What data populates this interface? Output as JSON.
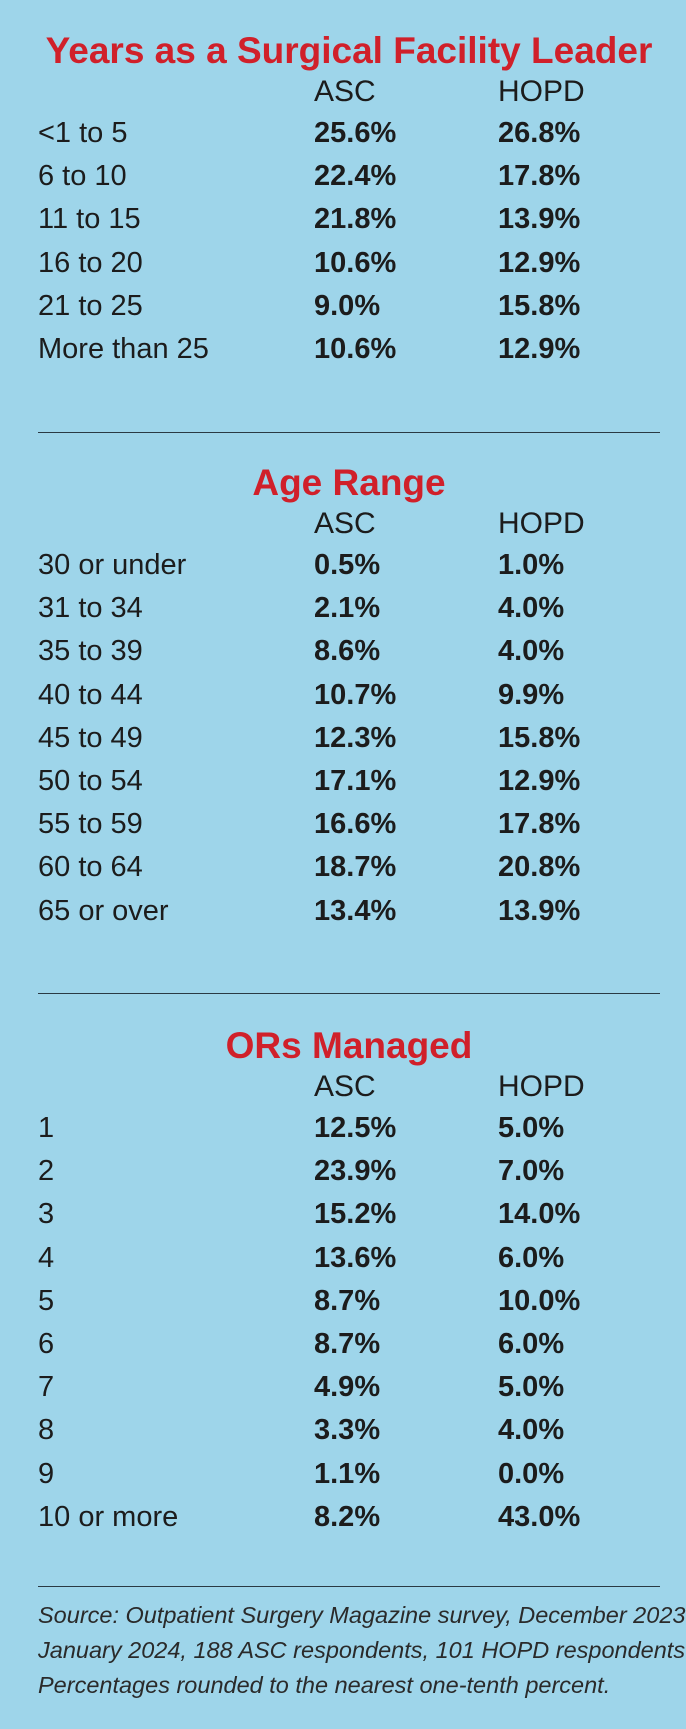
{
  "chart_data": [
    {
      "type": "table",
      "title": "Years as a Surgical Facility Leader",
      "columns": [
        "ASC",
        "HOPD"
      ],
      "rows": [
        {
          "label": "<1 to 5",
          "asc": "25.6%",
          "hopd": "26.8%"
        },
        {
          "label": "6 to 10",
          "asc": "22.4%",
          "hopd": "17.8%"
        },
        {
          "label": "11 to 15",
          "asc": "21.8%",
          "hopd": "13.9%"
        },
        {
          "label": "16 to 20",
          "asc": "10.6%",
          "hopd": "12.9%"
        },
        {
          "label": "21 to 25",
          "asc": "9.0%",
          "hopd": "15.8%"
        },
        {
          "label": "More than 25",
          "asc": "10.6%",
          "hopd": "12.9%"
        }
      ]
    },
    {
      "type": "table",
      "title": "Age Range",
      "columns": [
        "ASC",
        "HOPD"
      ],
      "rows": [
        {
          "label": "30 or under",
          "asc": "0.5%",
          "hopd": "1.0%"
        },
        {
          "label": "31 to 34",
          "asc": "2.1%",
          "hopd": "4.0%"
        },
        {
          "label": "35 to 39",
          "asc": "8.6%",
          "hopd": "4.0%"
        },
        {
          "label": "40 to 44",
          "asc": "10.7%",
          "hopd": "9.9%"
        },
        {
          "label": "45 to 49",
          "asc": "12.3%",
          "hopd": "15.8%"
        },
        {
          "label": "50 to 54",
          "asc": "17.1%",
          "hopd": "12.9%"
        },
        {
          "label": "55 to 59",
          "asc": "16.6%",
          "hopd": "17.8%"
        },
        {
          "label": "60 to 64",
          "asc": "18.7%",
          "hopd": "20.8%"
        },
        {
          "label": "65 or over",
          "asc": "13.4%",
          "hopd": "13.9%"
        }
      ]
    },
    {
      "type": "table",
      "title": "ORs Managed",
      "columns": [
        "ASC",
        "HOPD"
      ],
      "rows": [
        {
          "label": "1",
          "asc": "12.5%",
          "hopd": "5.0%"
        },
        {
          "label": "2",
          "asc": "23.9%",
          "hopd": "7.0%"
        },
        {
          "label": "3",
          "asc": "15.2%",
          "hopd": "14.0%"
        },
        {
          "label": "4",
          "asc": "13.6%",
          "hopd": "6.0%"
        },
        {
          "label": "5",
          "asc": "8.7%",
          "hopd": "10.0%"
        },
        {
          "label": "6",
          "asc": "8.7%",
          "hopd": "6.0%"
        },
        {
          "label": "7",
          "asc": "4.9%",
          "hopd": "5.0%"
        },
        {
          "label": "8",
          "asc": "3.3%",
          "hopd": "4.0%"
        },
        {
          "label": "9",
          "asc": "1.1%",
          "hopd": "0.0%"
        },
        {
          "label": "10 or more",
          "asc": "8.2%",
          "hopd": "43.0%"
        }
      ]
    }
  ],
  "source": {
    "lines": [
      "Source: Outpatient Surgery Magazine survey, December 2023-",
      "January 2024, 188 ASC respondents, 101 HOPD respondents.",
      "Percentages rounded to the nearest one-tenth percent."
    ]
  },
  "colors": {
    "background": "#9ed5ea",
    "title": "#d0202a",
    "text": "#1c1c1c"
  }
}
